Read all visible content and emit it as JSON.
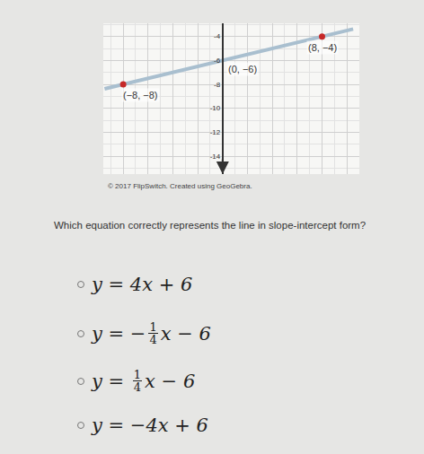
{
  "chart_data": {
    "type": "line",
    "series": [
      {
        "type": "line",
        "color": "#a9bfcf",
        "x": [
          -9.5,
          10.5
        ],
        "values": [
          -8.375,
          -3.375
        ]
      },
      {
        "type": "scatter",
        "color": "#c62828",
        "marker": "circle",
        "x": [
          -8,
          8
        ],
        "values": [
          -8,
          -4
        ]
      }
    ],
    "annotations": [
      {
        "text": "(8, −4)",
        "x": 8,
        "y": -4
      },
      {
        "text": "(0, −6)",
        "x": 0,
        "y": -6
      },
      {
        "text": "(−8, −8)",
        "x": -8,
        "y": -8
      }
    ],
    "xlim": [
      -9.6,
      11
    ],
    "ylim": [
      -15.5,
      -2.9
    ],
    "xticks": [
      -8,
      -6,
      -4,
      -2,
      0,
      2,
      4,
      6,
      8,
      10
    ],
    "yticks": [
      -4,
      -6,
      -8,
      -10,
      -12,
      -14
    ],
    "grid": true,
    "tick_labels": "y"
  },
  "credit": "© 2017 FlipSwitch. Created using GeoGebra.",
  "question": "Which equation correctly represents the line in slope-intercept form?",
  "choices": [
    {
      "prefix": "y = 4x + 6"
    },
    {
      "prefix": "y = −",
      "fraction": [
        "1",
        "4"
      ],
      "suffix": "x − 6"
    },
    {
      "prefix": "y = ",
      "fraction": [
        "1",
        "4"
      ],
      "suffix": "x − 6"
    },
    {
      "prefix": "y = −4x + 6"
    }
  ]
}
